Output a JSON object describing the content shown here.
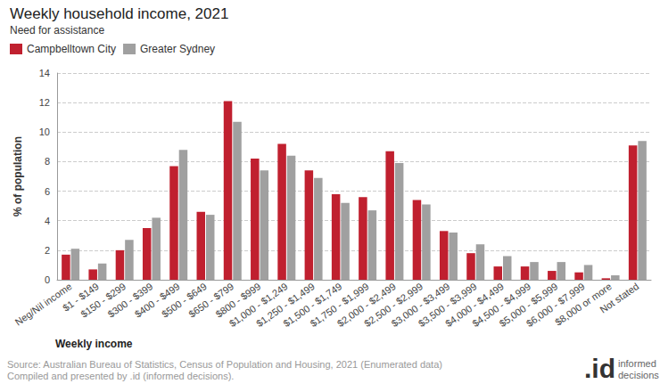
{
  "chart_data": {
    "type": "bar",
    "title": "Weekly household income, 2021",
    "subtitle": "Need for assistance",
    "x_label": "Weekly income",
    "y_label": "% of population",
    "source": [
      "Source: Australian Bureau of Statistics, Census of Population and Housing, 2021 (Enumerated data)",
      "Compiled and presented by .id (informed decisions)."
    ],
    "logo": [
      ".id",
      "informed",
      "decisions"
    ],
    "categories": [
      "Neg/Nil income",
      "$1 - $149",
      "$150 - $299",
      "$300 - $399",
      "$400 - $499",
      "$500 - $649",
      "$650 - $799",
      "$800 - $999",
      "$1,000 - $1,249",
      "$1,250 - $1,499",
      "$1,500 - $1,749",
      "$1,750 - $1,999",
      "$2,000 - $2,499",
      "$2,500 - $2,999",
      "$3,000 - $3,499",
      "$3,500 - $3,999",
      "$4,000 - $4,499",
      "$4,500 - $4,999",
      "$5,000 - $5,999",
      "$6,000 - $7,999",
      "$8,000 or more",
      "Not stated"
    ],
    "series": [
      {
        "name": "Campbelltown City",
        "color": "#c0202f",
        "values": [
          1.7,
          0.7,
          2.0,
          3.5,
          7.7,
          4.6,
          12.1,
          8.2,
          9.2,
          7.4,
          5.8,
          5.6,
          8.7,
          5.4,
          3.3,
          1.8,
          0.9,
          0.9,
          0.6,
          0.5,
          0.1,
          9.1
        ]
      },
      {
        "name": "Greater Sydney",
        "color": "#a0a0a0",
        "values": [
          2.1,
          1.1,
          2.7,
          4.2,
          8.8,
          4.4,
          10.7,
          7.4,
          8.4,
          6.9,
          5.2,
          4.7,
          7.9,
          5.1,
          3.2,
          2.4,
          1.6,
          1.2,
          1.2,
          1.0,
          0.3,
          9.4
        ]
      }
    ],
    "ylim": [
      0,
      14
    ],
    "yticks": [
      0,
      2,
      4,
      6,
      8,
      10,
      12,
      14
    ],
    "grid": true,
    "legend": "top-left"
  }
}
